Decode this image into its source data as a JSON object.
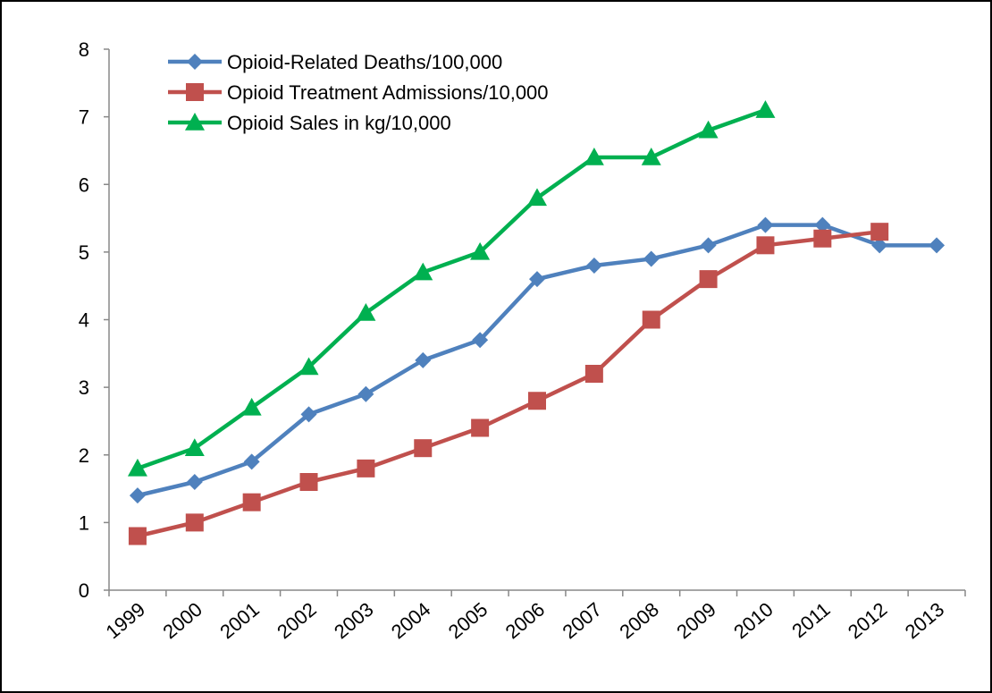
{
  "chart_data": {
    "type": "line",
    "categories": [
      "1999",
      "2000",
      "2001",
      "2002",
      "2003",
      "2004",
      "2005",
      "2006",
      "2007",
      "2008",
      "2009",
      "2010",
      "2011",
      "2012",
      "2013"
    ],
    "ylim": [
      0,
      8
    ],
    "yticks": [
      "0",
      "1",
      "2",
      "3",
      "4",
      "5",
      "6",
      "7",
      "8"
    ],
    "grid": false,
    "legend_position": "top-left",
    "series": [
      {
        "name": "Opioid-Related Deaths/100,000",
        "marker": "diamond",
        "color": "#4f81bd",
        "values": [
          1.4,
          1.6,
          1.9,
          2.6,
          2.9,
          3.4,
          3.7,
          4.6,
          4.8,
          4.9,
          5.1,
          5.4,
          5.4,
          5.1,
          5.1
        ]
      },
      {
        "name": "Opioid Treatment Admissions/10,000",
        "marker": "square",
        "color": "#c0504d",
        "values": [
          0.8,
          1.0,
          1.3,
          1.6,
          1.8,
          2.1,
          2.4,
          2.8,
          3.2,
          4.0,
          4.6,
          5.1,
          5.2,
          5.3,
          null
        ]
      },
      {
        "name": "Opioid Sales in kg/10,000",
        "marker": "triangle",
        "color": "#00b050",
        "values": [
          1.8,
          2.1,
          2.7,
          3.3,
          4.1,
          4.7,
          5.0,
          5.8,
          6.4,
          6.4,
          6.8,
          7.1,
          null,
          null,
          null
        ]
      }
    ]
  }
}
